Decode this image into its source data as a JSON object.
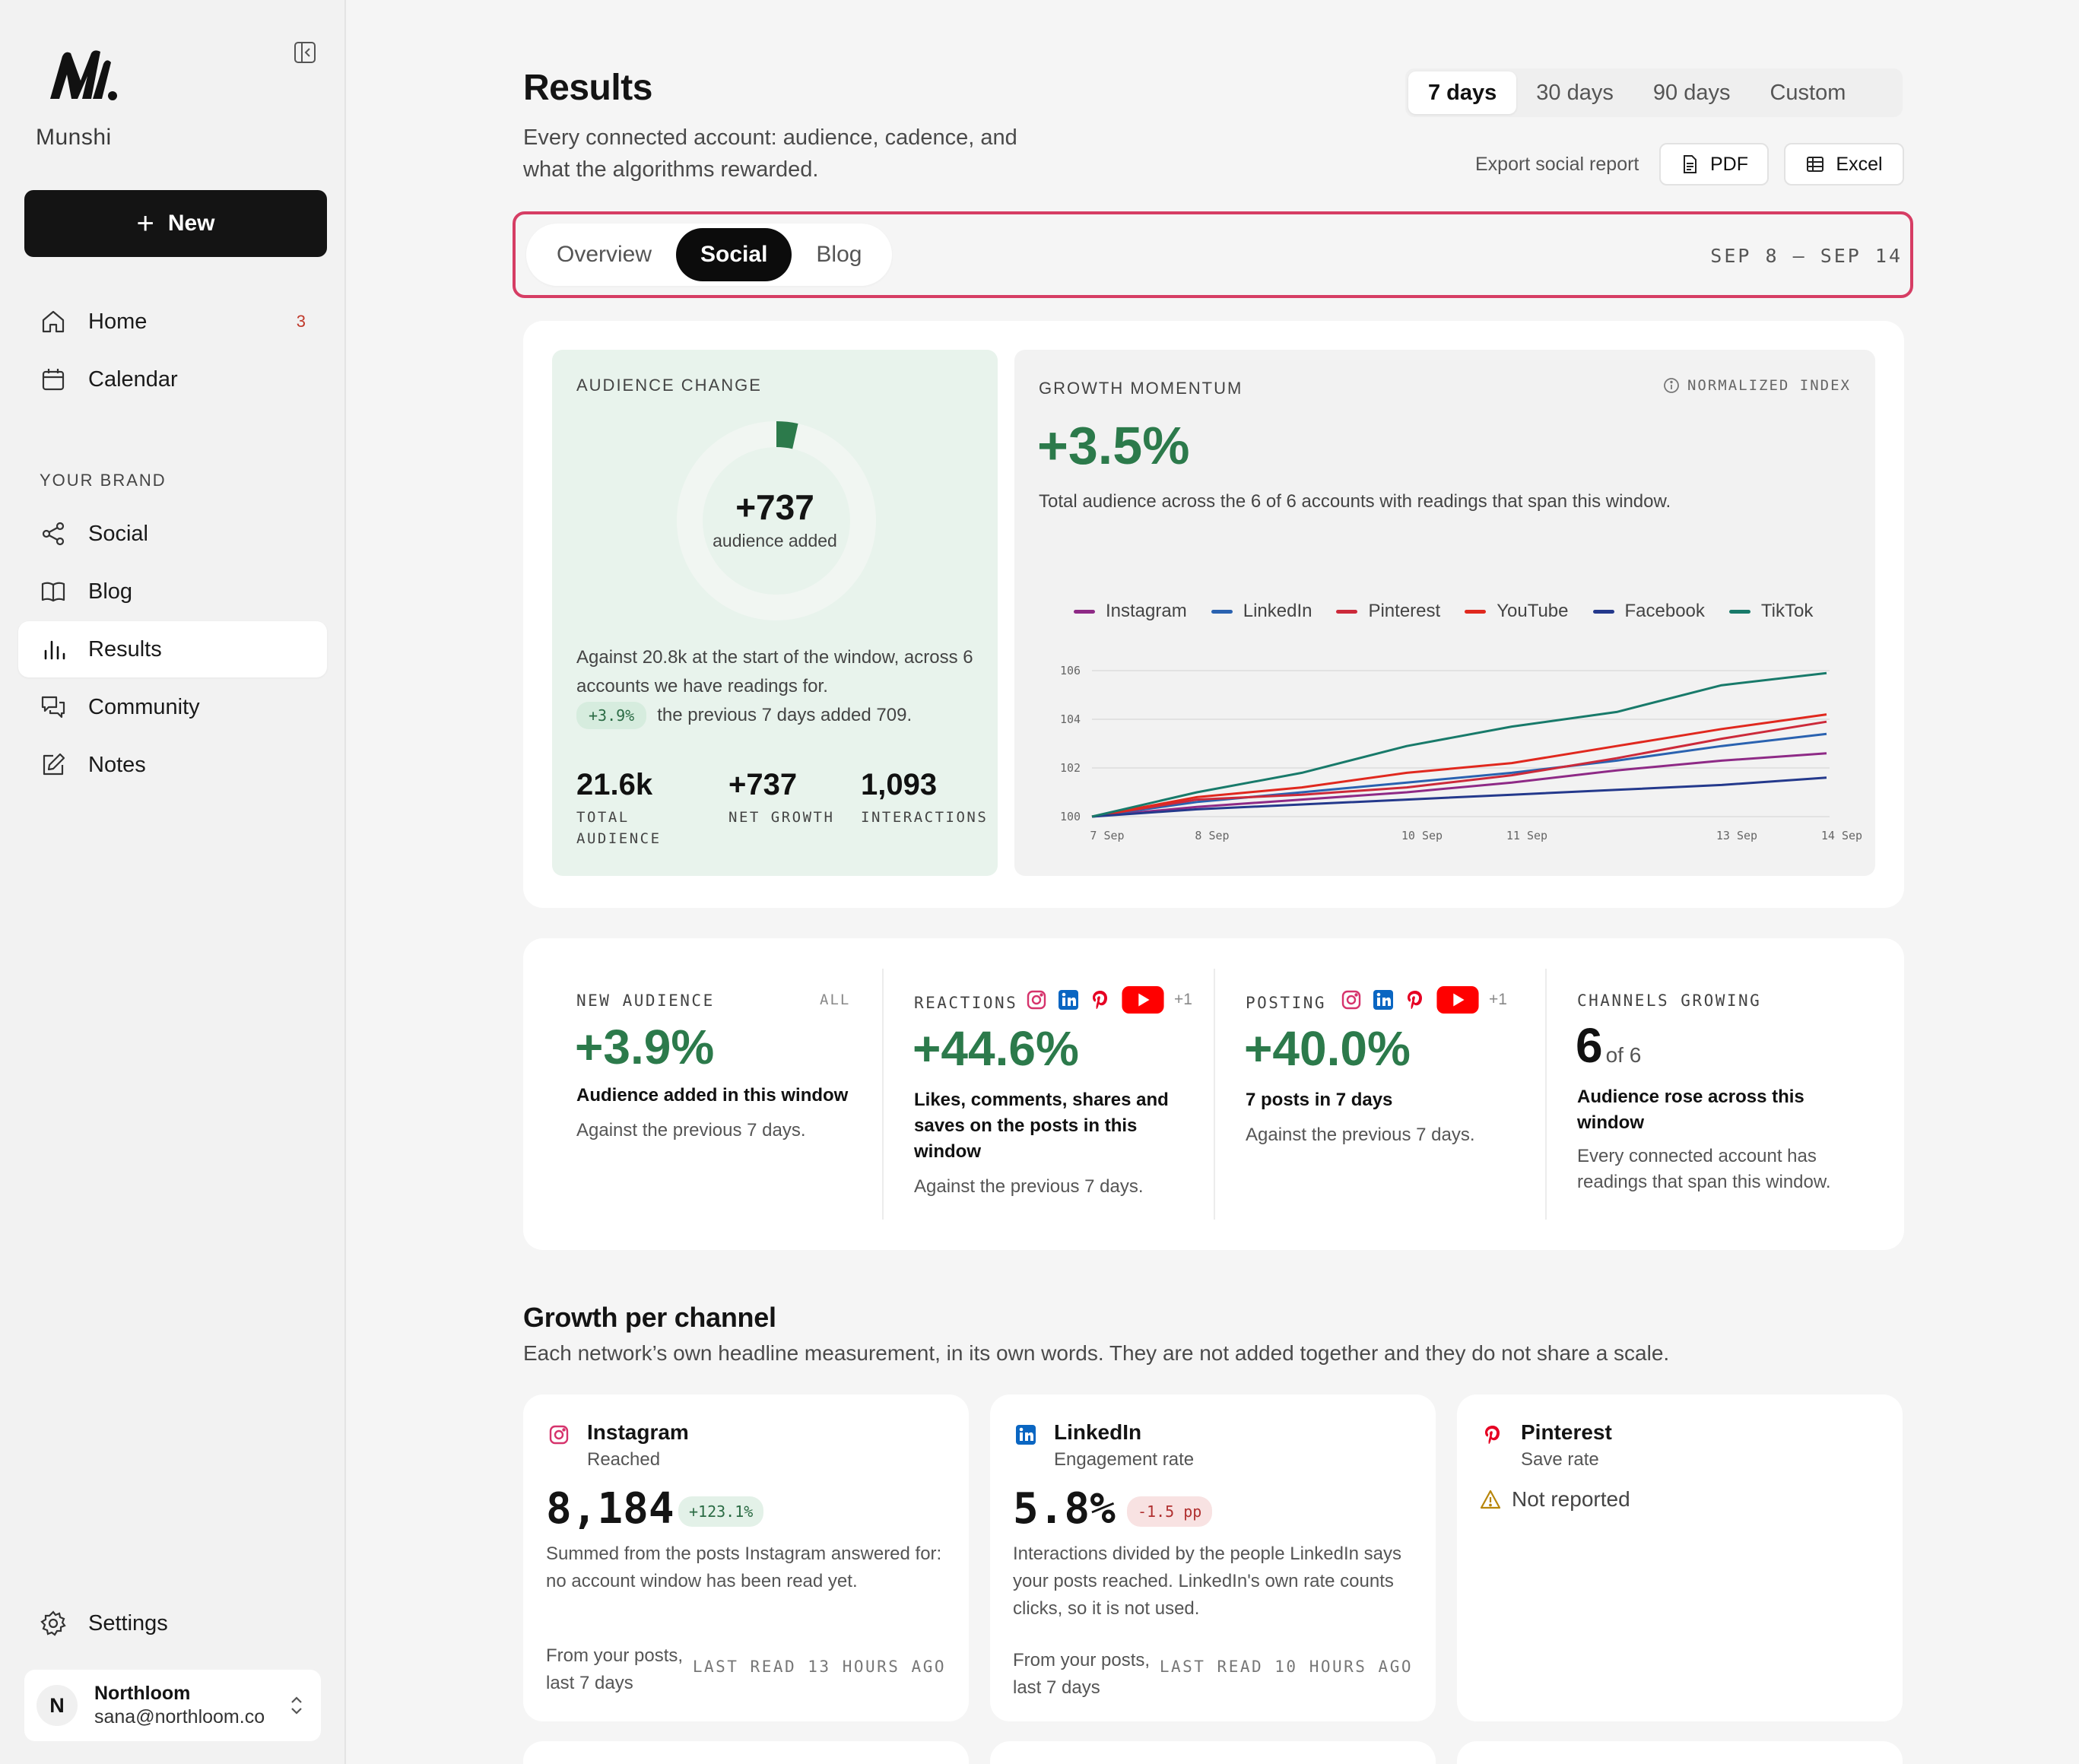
{
  "sidebar": {
    "brand": "Munshi",
    "new_label": "New",
    "nav_primary": [
      {
        "label": "Home",
        "icon": "home-icon",
        "badge": "3"
      },
      {
        "label": "Calendar",
        "icon": "calendar-icon"
      }
    ],
    "section_label": "YOUR BRAND",
    "nav_brand": [
      {
        "label": "Social",
        "icon": "share-icon"
      },
      {
        "label": "Blog",
        "icon": "book-icon"
      },
      {
        "label": "Results",
        "icon": "bar-chart-icon",
        "active": true
      },
      {
        "label": "Community",
        "icon": "chat-icon"
      },
      {
        "label": "Notes",
        "icon": "edit-icon"
      }
    ],
    "settings_label": "Settings",
    "user": {
      "initial": "N",
      "name": "Northloom",
      "email": "sana@northloom.co"
    }
  },
  "header": {
    "title": "Results",
    "subtitle": "Every connected account: audience, cadence, and what the algorithms rewarded.",
    "ranges": [
      "7 days",
      "30 days",
      "90 days",
      "Custom"
    ],
    "active_range": "7 days",
    "export_label": "Export social report",
    "pdf_label": "PDF",
    "excel_label": "Excel"
  },
  "tabs": {
    "items": [
      "Overview",
      "Social",
      "Blog"
    ],
    "active": "Social",
    "date_range": "SEP 8 – SEP 14"
  },
  "audience": {
    "eyebrow": "AUDIENCE CHANGE",
    "value": "+737",
    "value_label": "audience added",
    "donut_fraction": 0.035,
    "text_1": "Against 20.8k at the start of the window, across 6 accounts we have readings for.",
    "pill": "+3.9%",
    "text_2": "the previous 7 days added 709.",
    "stats": [
      {
        "value": "21.6k",
        "label": "TOTAL AUDIENCE"
      },
      {
        "value": "+737",
        "label": "NET GROWTH"
      },
      {
        "value": "1,093",
        "label": "INTERACTIONS"
      }
    ]
  },
  "growth": {
    "eyebrow": "GROWTH MOMENTUM",
    "index_label": "NORMALIZED INDEX",
    "value": "+3.5%",
    "description": "Total audience across the 6 of 6 accounts with readings that span this window."
  },
  "chart_data": {
    "type": "line",
    "x": [
      "7 Sep",
      "8 Sep",
      "9 Sep",
      "10 Sep",
      "11 Sep",
      "12 Sep",
      "13 Sep",
      "14 Sep"
    ],
    "x_tick_labels": [
      "7 Sep",
      "8 Sep",
      "10 Sep",
      "11 Sep",
      "13 Sep",
      "14 Sep"
    ],
    "y_ticks": [
      "100",
      "102",
      "104",
      "106"
    ],
    "ylim": [
      100,
      106
    ],
    "grid": true,
    "legend_position": "top",
    "series": [
      {
        "name": "Instagram",
        "color": "#8e2a86",
        "values": [
          100,
          100.4,
          100.7,
          101.0,
          101.4,
          101.9,
          102.3,
          102.6
        ]
      },
      {
        "name": "LinkedIn",
        "color": "#2a62b0",
        "values": [
          100,
          100.6,
          101.0,
          101.4,
          101.8,
          102.3,
          102.9,
          103.4
        ]
      },
      {
        "name": "Pinterest",
        "color": "#cc2a3a",
        "values": [
          100,
          100.7,
          100.9,
          101.2,
          101.7,
          102.4,
          103.2,
          103.9
        ]
      },
      {
        "name": "YouTube",
        "color": "#e0281e",
        "values": [
          100,
          100.8,
          101.2,
          101.8,
          102.2,
          102.9,
          103.6,
          104.2
        ]
      },
      {
        "name": "Facebook",
        "color": "#24398c",
        "values": [
          100,
          100.3,
          100.5,
          100.7,
          100.9,
          101.1,
          101.3,
          101.6
        ]
      },
      {
        "name": "TikTok",
        "color": "#187a6a",
        "values": [
          100,
          101.0,
          101.8,
          102.9,
          103.7,
          104.3,
          105.4,
          105.9
        ]
      }
    ]
  },
  "metrics": [
    {
      "eyebrow": "NEW AUDIENCE",
      "tag": "ALL",
      "value": "+3.9%",
      "title": "Audience added in this window",
      "note": "Against the previous 7 days."
    },
    {
      "eyebrow": "REACTIONS",
      "more": "+1",
      "value": "+44.6%",
      "title": "Likes, comments, shares and saves on the posts in this window",
      "note": "Against the previous 7 days."
    },
    {
      "eyebrow": "POSTING",
      "more": "+1",
      "value": "+40.0%",
      "title": "7 posts in 7 days",
      "note": "Against the previous 7 days."
    },
    {
      "eyebrow": "CHANNELS GROWING",
      "value": "6",
      "value_suffix": "of 6",
      "title": "Audience rose across this window",
      "note": "Every connected account has readings that span this window."
    }
  ],
  "per_channel": {
    "title": "Growth per channel",
    "subtitle": "Each network’s own headline measurement, in its own words. They are not added together and they do not share a scale.",
    "cards": [
      {
        "name": "Instagram",
        "metric": "Reached",
        "value": "8,184",
        "delta": "+123.1%",
        "description": "Summed from the posts Instagram answered for: no account window has been read yet.",
        "source": "From your posts, last 7 days",
        "last_read": "LAST READ 13 HOURS AGO"
      },
      {
        "name": "LinkedIn",
        "metric": "Engagement rate",
        "value": "5.8%",
        "delta": "-1.5 pp",
        "description": "Interactions divided by the people LinkedIn says your posts reached. LinkedIn's own rate counts clicks, so it is not used.",
        "source": "From your posts, last 7 days",
        "last_read": "LAST READ 10 HOURS AGO"
      },
      {
        "name": "Pinterest",
        "metric": "Save rate",
        "status": "Not reported"
      }
    ]
  },
  "colors": {
    "accent_green": "#2c7a4b",
    "highlight_border": "#d63d64",
    "primary_dark": "#141414"
  }
}
